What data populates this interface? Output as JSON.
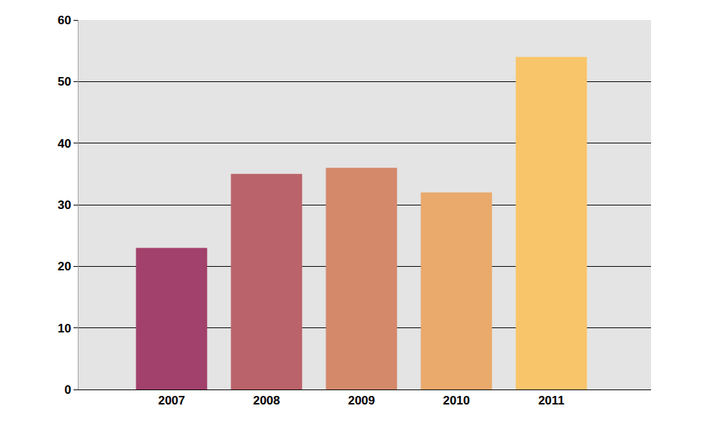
{
  "chart_data": {
    "type": "bar",
    "categories": [
      "2007",
      "2008",
      "2009",
      "2010",
      "2011"
    ],
    "values": [
      23,
      35,
      36,
      32,
      54
    ],
    "colors": [
      "#a2416b",
      "#bb636b",
      "#d4896b",
      "#e9aa6c",
      "#f8c56b"
    ],
    "ylim": [
      0,
      60
    ],
    "yticks": [
      0,
      10,
      20,
      30,
      40,
      50,
      60
    ],
    "grid": true
  }
}
